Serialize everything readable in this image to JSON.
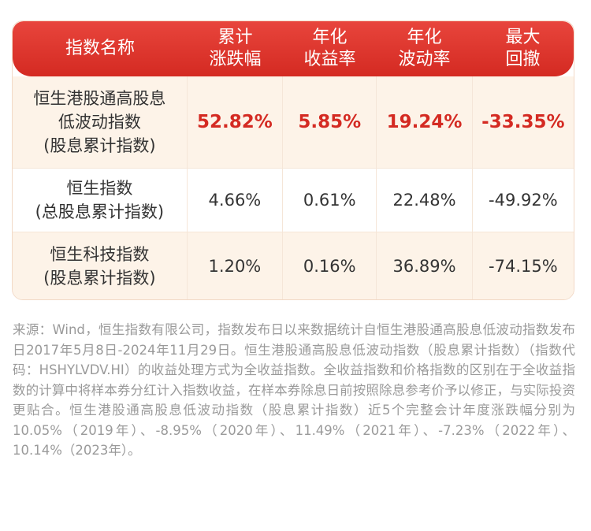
{
  "table": {
    "headers": [
      "指数名称",
      "累计\n涨跌幅",
      "年化\n收益率",
      "年化\n波动率",
      "最大\n回撤"
    ],
    "rows": [
      {
        "name": "恒生港股通高股息\n低波动指数\n(股息累计指数)",
        "cumulative": "52.82%",
        "annual_return": "5.85%",
        "annual_volatility": "19.24%",
        "max_drawdown": "-33.35%"
      },
      {
        "name": "恒生指数\n(总股息累计指数)",
        "cumulative": "4.66%",
        "annual_return": "0.61%",
        "annual_volatility": "22.48%",
        "max_drawdown": "-49.92%"
      },
      {
        "name": "恒生科技指数\n(股息累计指数)",
        "cumulative": "1.20%",
        "annual_return": "0.16%",
        "annual_volatility": "36.89%",
        "max_drawdown": "-74.15%"
      }
    ],
    "header_color": "#d42a22",
    "highlight_color": "#d42a22"
  },
  "footnote": "来源：Wind，恒生指数有限公司，指数发布日以来数据统计自恒生港股通高股息低波动指数发布日2017年5月8日-2024年11月29日。恒生港股通高股息低波动指数（股息累计指数）（指数代码：HSHYLVDV.HI）的收益处理方式为全收益指数。全收益指数和价格指数的区别在于全收益指数的计算中将样本券分红计入指数收益，在样本券除息日前按照除息参考价予以修正，与实际投资更贴合。恒生港股通高股息低波动指数（股息累计指数）近5个完整会计年度涨跌幅分别为10.05%（2019年）、-8.95%（2020年）、11.49%（2021年）、-7.23%（2022年）、10.14%（2023年）。"
}
